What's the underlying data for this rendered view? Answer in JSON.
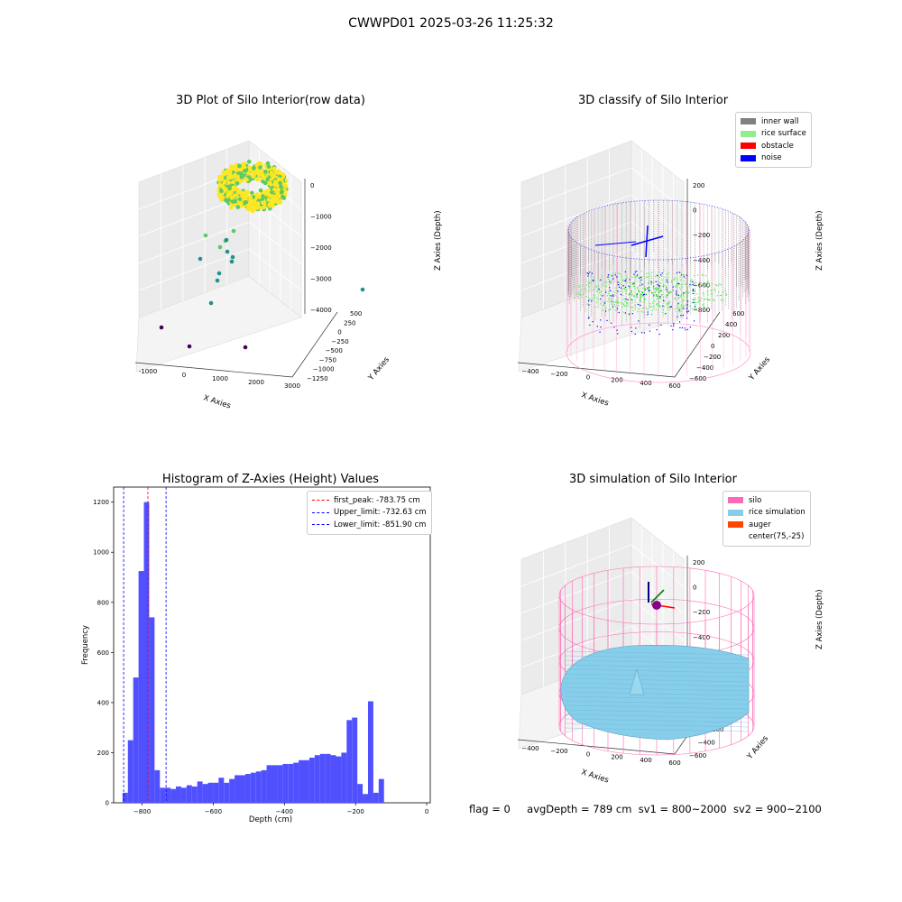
{
  "suptitle": "CWWPD01 2025-03-26 11:25:32",
  "status": {
    "flag": "flag = 0",
    "avg_depth": "avgDepth = 789 cm",
    "sv1": "sv1 = 800~2000",
    "sv2": "sv2 = 900~2100"
  },
  "chart_data": [
    {
      "type": "scatter",
      "title": "3D Plot of Silo Interior(row data)",
      "xlabel": "X Axies",
      "ylabel": "Y Axies",
      "zlabel": "Z Axies (Depth)",
      "x_ticks": [
        "-1000",
        "0",
        "1000",
        "2000",
        "3000"
      ],
      "y_ticks": [
        "500",
        "250",
        "0",
        "−250",
        "−500",
        "−750",
        "−1000",
        "−1250"
      ],
      "z_ticks": [
        "0",
        "−1000",
        "−2000",
        "−3000",
        "−4000"
      ],
      "colormap": [
        "#440154",
        "#21918c",
        "#5ec962",
        "#fde725"
      ],
      "grid": true
    },
    {
      "type": "scatter",
      "title": "3D classify of Silo Interior",
      "xlabel": "X Axies",
      "ylabel": "Y Axies",
      "zlabel": "Z Axies (Depth)",
      "x_ticks": [
        "−400",
        "−200",
        "0",
        "200",
        "400",
        "600"
      ],
      "y_ticks": [
        "600",
        "400",
        "200",
        "0",
        "−200",
        "−400",
        "−600"
      ],
      "z_ticks": [
        "200",
        "0",
        "−200",
        "−400",
        "−600",
        "−800"
      ],
      "legend": [
        {
          "label": "inner wall",
          "color": "#808080"
        },
        {
          "label": "rice surface",
          "color": "#90ee90"
        },
        {
          "label": "obstacle",
          "color": "#ff0000"
        },
        {
          "label": "noise",
          "color": "#0000ff"
        }
      ],
      "legend_position": "top-right",
      "grid": true
    },
    {
      "type": "bar",
      "title": "Histogram of Z-Axies (Height) Values",
      "xlabel": "Depth (cm)",
      "ylabel": "Frequency",
      "xlim": [
        -880,
        10
      ],
      "ylim": [
        0,
        1260
      ],
      "x_ticks": [
        -800,
        -600,
        -400,
        -200,
        0
      ],
      "y_ticks": [
        0,
        200,
        400,
        600,
        800,
        1000,
        1200
      ],
      "bin_width": 15,
      "bin_start": -855,
      "values": [
        40,
        250,
        500,
        925,
        1200,
        740,
        130,
        60,
        60,
        55,
        65,
        60,
        70,
        65,
        85,
        75,
        80,
        80,
        100,
        80,
        95,
        110,
        110,
        115,
        120,
        125,
        130,
        150,
        150,
        150,
        155,
        155,
        160,
        170,
        170,
        180,
        190,
        195,
        195,
        190,
        185,
        200,
        330,
        340,
        75,
        35,
        405,
        40,
        95
      ],
      "bar_color": "#5050ff",
      "vlines": [
        {
          "label": "first_peak: -783.75 cm",
          "x": -783.75,
          "color": "#ff0000"
        },
        {
          "label": "Upper_limit: -732.63 cm",
          "x": -732.63,
          "color": "#0000ff"
        },
        {
          "label": "Lower_limit: -851.90 cm",
          "x": -851.9,
          "color": "#0000ff"
        }
      ],
      "legend_position": "top-right"
    },
    {
      "type": "scatter",
      "title": "3D simulation of Silo Interior",
      "xlabel": "X Axies",
      "ylabel": "Y Axies",
      "zlabel": "Z Axies (Depth)",
      "x_ticks": [
        "−400",
        "−200",
        "0",
        "200",
        "400",
        "600"
      ],
      "y_ticks": [
        "400",
        "200",
        "0",
        "−200",
        "−400",
        "−600"
      ],
      "z_ticks": [
        "200",
        "0",
        "−200",
        "−400",
        "−600",
        "−800"
      ],
      "legend": [
        {
          "label": "silo",
          "color": "#ff69b4"
        },
        {
          "label": "rice simulation",
          "color": "#87ceeb"
        },
        {
          "label": "auger",
          "color": "#ff4500"
        },
        {
          "label": "center(75,-25)",
          "color": ""
        }
      ],
      "legend_position": "top-right",
      "grid": true
    }
  ]
}
